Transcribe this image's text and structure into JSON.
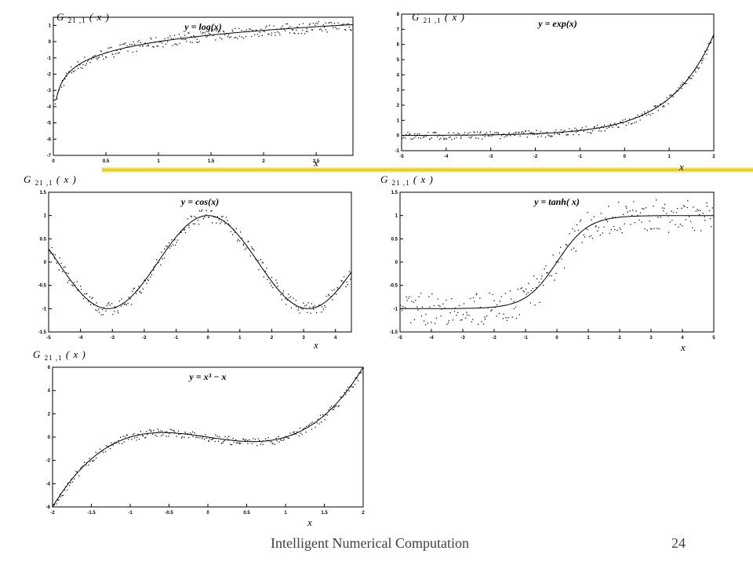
{
  "footer": {
    "title": "Intelligent Numerical Computation",
    "page": "24"
  },
  "y_label": {
    "symbol": "G",
    "subscript": "21 ,1",
    "arg": "( x )"
  },
  "x_label": "x",
  "colors": {
    "line": "#000000",
    "dots": "#111111",
    "divider": "#e3c800",
    "footer": "#404040"
  },
  "chart_data": [
    {
      "type": "line",
      "title": "y = log(x)",
      "func": "log",
      "noise": 0.35,
      "xlabel": "x",
      "xlim": [
        0,
        2.85
      ],
      "ylim": [
        -7,
        1.5
      ],
      "xticks": [
        0,
        0.5,
        1,
        1.5,
        2,
        2.5
      ],
      "xtick_labels": [
        "0",
        "0.5",
        "1",
        "1.5",
        "2",
        "2.5"
      ],
      "yticks": [
        -7,
        -6,
        -5,
        -4,
        -3,
        -2,
        -1,
        0,
        1
      ],
      "ytick_labels": [
        "-7",
        "-6",
        "-5",
        "-4",
        "-3",
        "-2",
        "-1",
        "0",
        "1"
      ],
      "grid": false
    },
    {
      "type": "line",
      "title": "y = exp(x)",
      "func": "exp",
      "noise": 0.25,
      "xlabel": "x",
      "xlim": [
        -5,
        2
      ],
      "ylim": [
        -1,
        8
      ],
      "xticks": [
        -5,
        -4,
        -3,
        -2,
        -1,
        0,
        1,
        2
      ],
      "xtick_labels": [
        "-5",
        "-4",
        "-3",
        "-2",
        "-1",
        "0",
        "1",
        "2"
      ],
      "yticks": [
        -1,
        0,
        1,
        2,
        3,
        4,
        5,
        6,
        7,
        8
      ],
      "ytick_labels": [
        "-1",
        "0",
        "1",
        "2",
        "3",
        "4",
        "5",
        "6",
        "7",
        "8"
      ],
      "grid": false
    },
    {
      "type": "line",
      "title": "y = cos(x)",
      "func": "cos",
      "noise": 0.15,
      "xlabel": "x",
      "xlim": [
        -5,
        4.5
      ],
      "ylim": [
        -1.5,
        1.5
      ],
      "xticks": [
        -5,
        -4,
        -3,
        -2,
        -1,
        0,
        1,
        2,
        3,
        4
      ],
      "xtick_labels": [
        "-5",
        "-4",
        "-3",
        "-2",
        "-1",
        "0",
        "1",
        "2",
        "3",
        "4"
      ],
      "yticks": [
        -1.5,
        -1,
        -0.5,
        0,
        0.5,
        1,
        1.5
      ],
      "ytick_labels": [
        "-1.5",
        "-1",
        "-0.5",
        "0",
        "0.5",
        "1",
        "1.5"
      ],
      "grid": false
    },
    {
      "type": "line",
      "title": "y = tanh( x)",
      "func": "tanh",
      "noise": 0.35,
      "xlabel": "x",
      "xlim": [
        -5,
        5
      ],
      "ylim": [
        -1.5,
        1.5
      ],
      "xticks": [
        -5,
        -4,
        -3,
        -2,
        -1,
        0,
        1,
        2,
        3,
        4,
        5
      ],
      "xtick_labels": [
        "-5",
        "-4",
        "-3",
        "-2",
        "-1",
        "0",
        "1",
        "2",
        "3",
        "4",
        "5"
      ],
      "yticks": [
        -1.5,
        -1,
        -0.5,
        0,
        0.5,
        1,
        1.5
      ],
      "ytick_labels": [
        "-1.5",
        "-1",
        "-0.5",
        "0",
        "0.5",
        "1",
        "1.5"
      ],
      "grid": false
    },
    {
      "type": "line",
      "title": "y = x³ − x",
      "func": "cubic",
      "noise": 0.35,
      "xlabel": "x",
      "xlim": [
        -2,
        2
      ],
      "ylim": [
        -6,
        6
      ],
      "xticks": [
        -2,
        -1.5,
        -1,
        -0.5,
        0,
        0.5,
        1,
        1.5,
        2
      ],
      "xtick_labels": [
        "-2",
        "-1.5",
        "-1",
        "-0.5",
        "0",
        "0.5",
        "1",
        "1.5",
        "2"
      ],
      "yticks": [
        -6,
        -4,
        -2,
        0,
        2,
        4,
        6
      ],
      "ytick_labels": [
        "-6",
        "-4",
        "-2",
        "0",
        "2",
        "4",
        "6"
      ],
      "grid": false
    }
  ]
}
